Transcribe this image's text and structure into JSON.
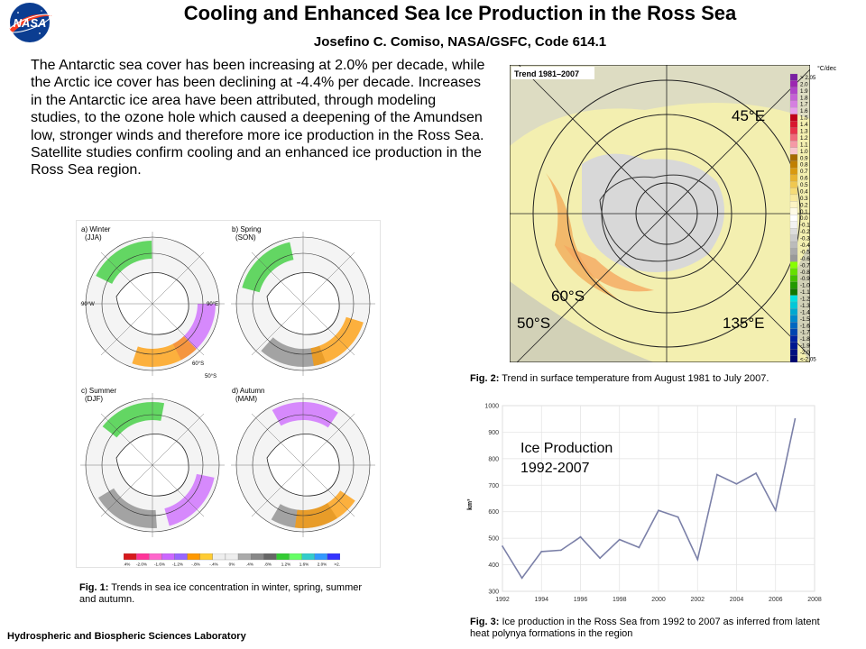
{
  "header": {
    "title": "Cooling and Enhanced Sea Ice Production in the Ross Sea",
    "author": "Josefino C. Comiso, NASA/GSFC, Code 614.1",
    "logo_text": "NASA"
  },
  "abstract": "The Antarctic sea cover has been increasing at 2.0% per decade, while the Arctic ice cover has been declining at -4.4% per decade.  Increases in the Antarctic ice area have been attributed, through modeling studies, to the ozone hole which caused a deepening of the Amundsen low, stronger winds and therefore more ice production in the Ross Sea. Satellite studies confirm cooling and an enhanced ice production in the Ross Sea region.",
  "fig1": {
    "panels": [
      {
        "label": "a) Winter",
        "sub": "(JJA)"
      },
      {
        "label": "b) Spring",
        "sub": "(SON)"
      },
      {
        "label": "c) Summer",
        "sub": "(DJF)"
      },
      {
        "label": "d) Autumn",
        "sub": "(MAM)"
      }
    ],
    "map_labels": {
      "w90": "90°W",
      "e90": "90°E",
      "s60": "60°S",
      "s50": "50°S"
    },
    "colorbar_labels": [
      "<-2.4%",
      "-2.0%",
      "-1.6%",
      "-1.2%",
      "-.8%",
      "-.4%",
      "0%",
      ".4%",
      ".8%",
      "1.2%",
      "1.6%",
      "2.0%",
      ">2.4%"
    ],
    "colorbar_colors": [
      "#d7191c",
      "#ff3399",
      "#ff66cc",
      "#cc66ff",
      "#9966ff",
      "#ff9900",
      "#ffcc33",
      "#eeeeee",
      "#eeeeee",
      "#aaaaaa",
      "#888888",
      "#666666",
      "#33cc33",
      "#66ff66",
      "#33cccc",
      "#3399ff",
      "#3333ff"
    ],
    "caption_label": "Fig. 1:",
    "caption": " Trends in sea ice concentration in winter, spring, summer and autumn."
  },
  "fig2": {
    "header": "Trend 1981–2007",
    "labels": {
      "e45": "45°E",
      "s60": "60°S",
      "s50": "50°S",
      "e135": "135°E"
    },
    "unit": "°C/dec",
    "scale_labels": [
      "> 2.05",
      "2.0",
      "1.9",
      "1.8",
      "1.7",
      "1.6",
      "1.5",
      "1.4",
      "1.3",
      "1.2",
      "1.1",
      "1.0",
      "0.9",
      "0.8",
      "0.7",
      "0.6",
      "0.5",
      "0.4",
      "0.3",
      "0.2",
      "0.1",
      "0.0",
      "-0.1",
      "-0.2",
      "-0.3",
      "-0.4",
      "-0.5",
      "-0.6",
      "-0.7",
      "-0.8",
      "-0.9",
      "-1.0",
      "-1.1",
      "-1.2",
      "-1.3",
      "-1.4",
      "-1.5",
      "-1.6",
      "-1.7",
      "-1.8",
      "-1.9",
      "-2.0",
      "<-2.05"
    ],
    "scale_colors": [
      "#7a1fa2",
      "#9c27b0",
      "#b044c8",
      "#c561d6",
      "#d580e0",
      "#e8a0ea",
      "#c0001a",
      "#d8182d",
      "#e8344a",
      "#f06a7a",
      "#f59aa6",
      "#f8c7cd",
      "#a66a00",
      "#c08000",
      "#d99a10",
      "#e8b430",
      "#f0c850",
      "#f6dc78",
      "#faea9e",
      "#fcf3c4",
      "#fefae6",
      "#ffffff",
      "#f2f2f2",
      "#dddddd",
      "#cccccc",
      "#bbbbbb",
      "#aaaaaa",
      "#999999",
      "#88ff00",
      "#66e000",
      "#44c000",
      "#229900",
      "#117700",
      "#00e0e0",
      "#00c8d8",
      "#00a8d0",
      "#0088cc",
      "#0066c0",
      "#0044b0",
      "#0022a0",
      "#001890",
      "#001080",
      "#000870"
    ],
    "caption_label": "Fig. 2:",
    "caption": " Trend in surface temperature from August 1981 to July 2007."
  },
  "fig3": {
    "caption_label": "Fig. 3:",
    "caption": " Ice production in the Ross Sea from 1992 to 2007 as inferred from latent heat  polynya formations in the region"
  },
  "chart_data": {
    "type": "line",
    "title": "Ice Production\n1992-2007",
    "xlabel": "",
    "ylabel": "km³",
    "x": [
      1992,
      1993,
      1994,
      1995,
      1996,
      1997,
      1998,
      1999,
      2000,
      2001,
      2002,
      2003,
      2004,
      2005,
      2006,
      2007
    ],
    "values": [
      470,
      350,
      450,
      455,
      505,
      425,
      495,
      465,
      605,
      580,
      420,
      740,
      705,
      745,
      605,
      950
    ],
    "xlim": [
      1992,
      2008
    ],
    "ylim": [
      300,
      1000
    ],
    "xticks": [
      1992,
      1994,
      1996,
      1998,
      2000,
      2002,
      2004,
      2006,
      2008
    ],
    "yticks": [
      300,
      400,
      500,
      600,
      700,
      800,
      900,
      1000
    ],
    "grid": true,
    "line_color": "#7b80a8"
  },
  "footer": "Hydrospheric and Biospheric Sciences Laboratory"
}
